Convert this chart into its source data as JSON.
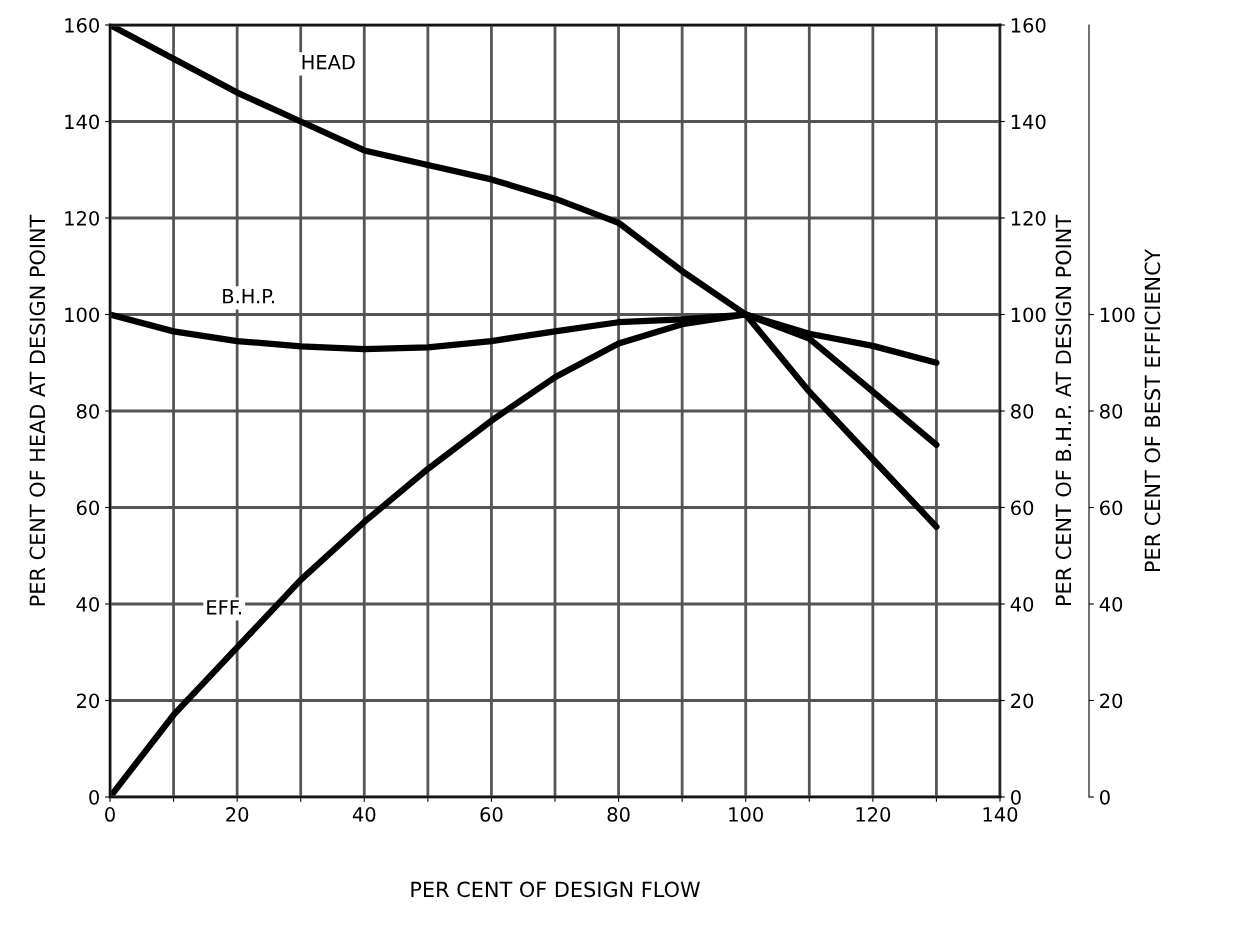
{
  "chart_data": {
    "type": "line",
    "xlabel": "PER CENT OF DESIGN FLOW",
    "ylabel": "PER CENT OF HEAD AT DESIGN POINT",
    "y2label": "PER CENT OF B.H.P. AT DESIGN POINT",
    "y3label": "PER CENT OF BEST EFFICIENCY",
    "x": [
      0,
      10,
      20,
      30,
      40,
      50,
      60,
      70,
      80,
      90,
      100,
      110,
      120,
      130
    ],
    "xlim": [
      0,
      140
    ],
    "xticks": [
      0,
      {
        "value": 10,
        "label": null
      },
      20,
      {
        "value": 30,
        "label": null
      },
      40,
      {
        "value": 50,
        "label": null
      },
      60,
      {
        "value": 70,
        "label": null
      },
      80,
      {
        "value": 90,
        "label": null
      },
      100,
      {
        "value": 110,
        "label": null
      },
      120,
      {
        "value": 130,
        "label": null
      },
      140
    ],
    "ylim": [
      0,
      160
    ],
    "yticks": [
      0,
      20,
      40,
      60,
      80,
      100,
      120,
      140,
      160
    ],
    "y2lim": [
      0,
      160
    ],
    "y2ticks": [
      0,
      20,
      40,
      60,
      80,
      100,
      120,
      140,
      160
    ],
    "y3lim": [
      0,
      160
    ],
    "y3ticks": [
      0,
      20,
      40,
      60,
      80,
      100
    ],
    "grid": true,
    "marker": "none",
    "line_style": "solid",
    "legend": false,
    "series": [
      {
        "name": "HEAD",
        "color": "#000000",
        "values": [
          160,
          153,
          146,
          140,
          134,
          131,
          128,
          124,
          119,
          109,
          100,
          84,
          70,
          56
        ]
      },
      {
        "name": "B.H.P.",
        "color": "#000000",
        "values": [
          100,
          96.5,
          94.5,
          93.4,
          92.8,
          93.2,
          94.5,
          96.5,
          98.4,
          99,
          100,
          96,
          93.5,
          90
        ]
      },
      {
        "name": "EFF.",
        "color": "#000000",
        "values": [
          0,
          17,
          31,
          45,
          57,
          68,
          78,
          87,
          94,
          98,
          100,
          95,
          84,
          73
        ]
      }
    ]
  }
}
